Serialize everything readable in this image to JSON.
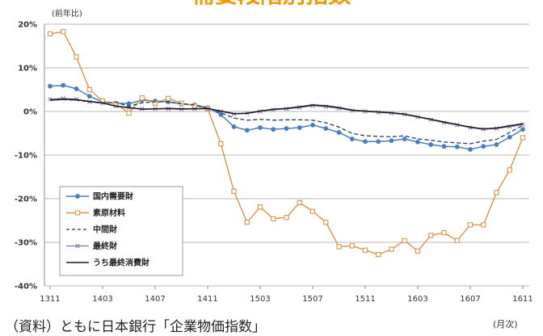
{
  "source_note": "（資料）ともに日本銀行「企業物価指数」",
  "chart_data": {
    "type": "line",
    "title": "需要段階別指数",
    "ylabel": "(前年比)",
    "xlabel": "(月次)",
    "ylim": [
      -40,
      20
    ],
    "grid": true,
    "legend_position": "bottom-left",
    "yticks": [
      {
        "value": 20,
        "label": "20%"
      },
      {
        "value": 10,
        "label": "10%"
      },
      {
        "value": 0,
        "label": "0%"
      },
      {
        "value": -10,
        "label": "-10%"
      },
      {
        "value": -20,
        "label": "-20%"
      },
      {
        "value": -30,
        "label": "-30%"
      },
      {
        "value": -40,
        "label": "-40%"
      }
    ],
    "xticks": [
      "1311",
      "1403",
      "1407",
      "1411",
      "1503",
      "1507",
      "1511",
      "1603",
      "1607",
      "1611"
    ],
    "x": [
      1311,
      1312,
      1401,
      1402,
      1403,
      1404,
      1405,
      1406,
      1407,
      1408,
      1409,
      1410,
      1411,
      1412,
      1501,
      1502,
      1503,
      1504,
      1505,
      1506,
      1507,
      1508,
      1509,
      1510,
      1511,
      1512,
      1601,
      1602,
      1603,
      1604,
      1605,
      1606,
      1607,
      1608,
      1609,
      1610,
      1611
    ],
    "series": [
      {
        "name": "国内需要財",
        "color": "#4a7ebb",
        "marker": "circle",
        "dash": false,
        "values": [
          5.8,
          6.0,
          5.2,
          3.5,
          2.2,
          1.9,
          1.8,
          2.6,
          2.4,
          2.2,
          1.7,
          1.5,
          0.9,
          -0.7,
          -3.5,
          -4.3,
          -3.7,
          -4.1,
          -3.9,
          -3.7,
          -3.1,
          -3.9,
          -4.8,
          -6.3,
          -6.9,
          -6.9,
          -6.7,
          -6.3,
          -7.0,
          -7.6,
          -8.0,
          -8.1,
          -8.7,
          -8.0,
          -7.6,
          -5.9,
          -4.1
        ]
      },
      {
        "name": "素原材料",
        "color": "#d8954a",
        "marker": "square",
        "dash": false,
        "values": [
          17.8,
          18.3,
          12.5,
          5.0,
          2.4,
          1.8,
          -0.4,
          3.1,
          1.9,
          3.0,
          1.9,
          1.3,
          0.7,
          -7.4,
          -18.3,
          -25.4,
          -21.9,
          -24.6,
          -24.3,
          -20.9,
          -22.9,
          -25.4,
          -31.0,
          -30.8,
          -31.8,
          -32.8,
          -31.6,
          -29.6,
          -32.0,
          -28.4,
          -27.8,
          -29.6,
          -26.0,
          -26.0,
          -18.6,
          -13.4,
          -6.0
        ]
      },
      {
        "name": "中間財",
        "color": "#1f3c6e",
        "marker": "none",
        "dash": true,
        "values": [
          2.6,
          2.7,
          2.6,
          2.2,
          1.9,
          2.1,
          1.2,
          2.0,
          2.2,
          2.2,
          1.8,
          1.5,
          0.8,
          -0.3,
          -1.5,
          -2.0,
          -1.8,
          -2.0,
          -1.9,
          -1.9,
          -2.0,
          -2.6,
          -3.6,
          -5.0,
          -5.6,
          -5.7,
          -5.8,
          -5.6,
          -6.3,
          -6.6,
          -7.0,
          -7.2,
          -7.4,
          -6.8,
          -6.4,
          -4.8,
          -3.2
        ]
      },
      {
        "name": "最終財",
        "color": "#8a72a8",
        "marker": "x",
        "dash": false,
        "values": [
          2.8,
          3.0,
          2.8,
          2.2,
          1.9,
          1.2,
          0.8,
          0.6,
          0.6,
          0.6,
          0.5,
          0.6,
          0.6,
          0.0,
          -0.6,
          -0.4,
          0.0,
          0.4,
          0.6,
          0.9,
          1.3,
          1.1,
          0.7,
          0.2,
          0.0,
          -0.2,
          -0.4,
          -0.7,
          -1.3,
          -1.9,
          -2.6,
          -3.1,
          -3.7,
          -4.1,
          -3.9,
          -3.5,
          -3.0
        ]
      },
      {
        "name": "うち最終消費財",
        "color": "#1a1a1a",
        "marker": "none",
        "dash": false,
        "values": [
          2.6,
          2.8,
          2.7,
          2.3,
          2.0,
          1.2,
          0.9,
          0.5,
          0.6,
          0.7,
          0.6,
          0.6,
          0.7,
          0.1,
          -0.5,
          -0.4,
          0.1,
          0.5,
          0.7,
          1.1,
          1.5,
          1.3,
          0.9,
          0.3,
          0.1,
          -0.1,
          -0.3,
          -0.6,
          -1.2,
          -1.8,
          -2.4,
          -3.0,
          -3.6,
          -4.0,
          -3.8,
          -3.3,
          -2.8
        ]
      }
    ]
  }
}
